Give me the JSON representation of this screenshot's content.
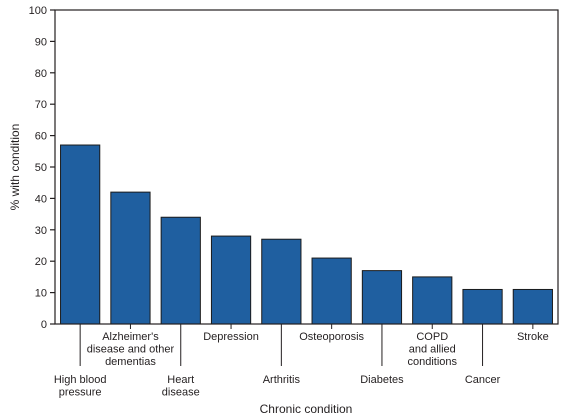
{
  "chart_data": {
    "type": "bar",
    "title": "",
    "xlabel": "Chronic condition",
    "ylabel": "% with condition",
    "ylim": [
      0,
      100
    ],
    "yticks": [
      0,
      10,
      20,
      30,
      40,
      50,
      60,
      70,
      80,
      90,
      100
    ],
    "grid": false,
    "bar_color": "#1f5fa0",
    "bar_edge_color": "#1b1b1b",
    "categories": [
      {
        "label": [
          "High blood",
          "pressure"
        ],
        "value": 57,
        "label_row": "low"
      },
      {
        "label": [
          "Alzheimer's",
          "disease and other",
          "dementias"
        ],
        "value": 42,
        "label_row": "high"
      },
      {
        "label": [
          "Heart",
          "disease"
        ],
        "value": 34,
        "label_row": "low"
      },
      {
        "label": [
          "Depression"
        ],
        "value": 28,
        "label_row": "high"
      },
      {
        "label": [
          "Arthritis"
        ],
        "value": 27,
        "label_row": "low"
      },
      {
        "label": [
          "Osteoporosis"
        ],
        "value": 21,
        "label_row": "high"
      },
      {
        "label": [
          "Diabetes"
        ],
        "value": 17,
        "label_row": "low"
      },
      {
        "label": [
          "COPD",
          "and allied",
          "conditions"
        ],
        "value": 15,
        "label_row": "high"
      },
      {
        "label": [
          "Cancer"
        ],
        "value": 11,
        "label_row": "low"
      },
      {
        "label": [
          "Stroke"
        ],
        "value": 11,
        "label_row": "high"
      }
    ]
  }
}
